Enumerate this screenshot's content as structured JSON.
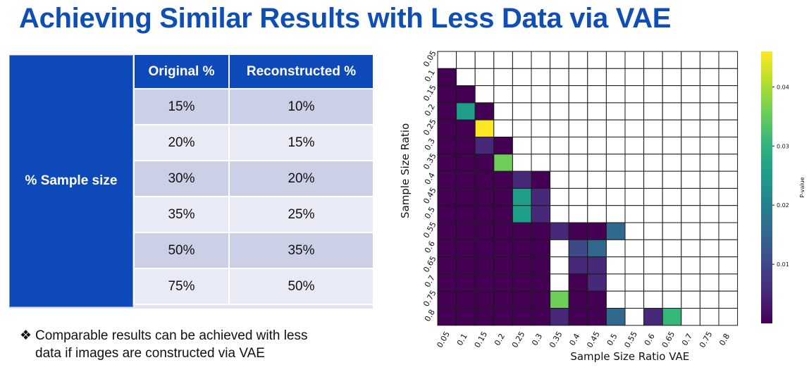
{
  "title": "Achieving Similar Results with Less Data via VAE",
  "table": {
    "row_header": "% Sample size",
    "columns": [
      "Original %",
      "Reconstructed %"
    ],
    "rows": [
      [
        "15%",
        "10%"
      ],
      [
        "20%",
        "15%"
      ],
      [
        "30%",
        "20%"
      ],
      [
        "35%",
        "25%"
      ],
      [
        "50%",
        "35%"
      ],
      [
        "75%",
        "50%"
      ]
    ]
  },
  "bullet": {
    "marker": "❖",
    "text_line1": "Comparable results can be achieved with less",
    "text_line2": "data if images are constructed via VAE"
  },
  "chart_data": {
    "type": "heatmap",
    "xlabel": "Sample Size Ratio VAE",
    "ylabel": "Sample Size Ratio",
    "x_ticks": [
      "0.05",
      "0.1",
      "0.15",
      "0.2",
      "0.25",
      "0.3",
      "0.35",
      "0.4",
      "0.45",
      "0.5",
      "0.55",
      "0.6",
      "0.65",
      "0.7",
      "0.75",
      "0.8"
    ],
    "y_ticks": [
      "0.05",
      "0.1",
      "0.15",
      "0.2",
      "0.25",
      "0.3",
      "0.35",
      "0.4",
      "0.45",
      "0.5",
      "0.55",
      "0.6",
      "0.65",
      "0.7",
      "0.75",
      "0.8"
    ],
    "colorbar": {
      "label": "P-value",
      "ticks": [
        0.01,
        0.02,
        0.03,
        0.04
      ],
      "range": [
        0,
        0.046
      ]
    },
    "colormap": [
      "#440154",
      "#482878",
      "#3e4989",
      "#31688e",
      "#26828e",
      "#1f9e89",
      "#35b779",
      "#6ece58",
      "#b5de2b",
      "#fde725"
    ],
    "grid": true,
    "values": [
      [
        null,
        null,
        null,
        null,
        null,
        null,
        null,
        null,
        null,
        null,
        null,
        null,
        null,
        null,
        null,
        null
      ],
      [
        0.0003,
        null,
        null,
        null,
        null,
        null,
        null,
        null,
        null,
        null,
        null,
        null,
        null,
        null,
        null,
        null
      ],
      [
        0.0003,
        0.0003,
        null,
        null,
        null,
        null,
        null,
        null,
        null,
        null,
        null,
        null,
        null,
        null,
        null,
        null
      ],
      [
        0.0003,
        0.026,
        0.0003,
        null,
        null,
        null,
        null,
        null,
        null,
        null,
        null,
        null,
        null,
        null,
        null,
        null
      ],
      [
        0.0003,
        0.0005,
        0.046,
        null,
        null,
        null,
        null,
        null,
        null,
        null,
        null,
        null,
        null,
        null,
        null,
        null
      ],
      [
        0.0003,
        0.0003,
        0.006,
        0.0003,
        null,
        null,
        null,
        null,
        null,
        null,
        null,
        null,
        null,
        null,
        null,
        null
      ],
      [
        0.0003,
        0.0003,
        0.001,
        0.034,
        null,
        null,
        null,
        null,
        null,
        null,
        null,
        null,
        null,
        null,
        null,
        null
      ],
      [
        0.0003,
        0.0003,
        0.0003,
        0.0005,
        0.003,
        0.0008,
        null,
        null,
        null,
        null,
        null,
        null,
        null,
        null,
        null,
        null
      ],
      [
        0.0003,
        0.0003,
        0.0003,
        0.001,
        0.024,
        0.005,
        null,
        null,
        null,
        null,
        null,
        null,
        null,
        null,
        null,
        null
      ],
      [
        0.0003,
        0.0003,
        0.0003,
        0.001,
        0.024,
        0.005,
        null,
        null,
        null,
        null,
        null,
        null,
        null,
        null,
        null,
        null
      ],
      [
        0.0003,
        0.0003,
        0.0003,
        0.0005,
        0.0003,
        0.0003,
        0.005,
        0.0005,
        0.0008,
        0.015,
        null,
        null,
        null,
        null,
        null,
        null
      ],
      [
        0.0003,
        0.0003,
        0.0003,
        0.0003,
        0.0003,
        0.0003,
        null,
        0.012,
        0.013,
        null,
        null,
        null,
        null,
        null,
        null,
        null
      ],
      [
        0.0003,
        0.0003,
        0.0003,
        0.0003,
        0.0003,
        0.0003,
        null,
        0.003,
        0.005,
        null,
        null,
        null,
        null,
        null,
        null,
        null
      ],
      [
        0.0003,
        0.0003,
        0.0003,
        0.0003,
        0.0003,
        0.0003,
        null,
        0.002,
        0.003,
        null,
        null,
        null,
        null,
        null,
        null,
        null
      ],
      [
        0.0003,
        0.0003,
        0.0003,
        0.0003,
        0.0003,
        0.0003,
        0.035,
        0.0008,
        0.002,
        null,
        null,
        null,
        null,
        null,
        null,
        null
      ],
      [
        0.0003,
        0.0003,
        0.0003,
        0.0003,
        0.0003,
        0.0003,
        0.004,
        0.0008,
        0.0005,
        0.017,
        null,
        0.004,
        0.029,
        null,
        null,
        null
      ]
    ]
  }
}
